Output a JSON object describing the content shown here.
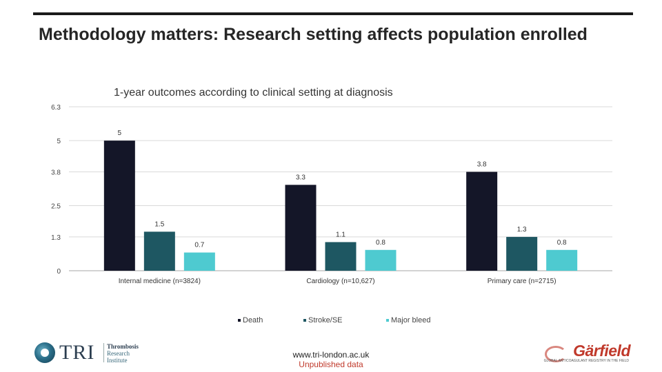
{
  "slide": {
    "title": "Methodology matters: Research setting affects population enrolled",
    "footer_url": "www.tri-london.ac.uk",
    "footer_note": "Unpublished data"
  },
  "logos": {
    "left_mark": "TRI",
    "left_sub_1": "Thrombosis",
    "left_sub_2": "Research",
    "left_sub_3": "Institute",
    "right_mark": "Gärfield",
    "right_tag": "GLOBAL ANTICOAGULANT REGISTRY IN THE FIELD"
  },
  "colors": {
    "death": "#141628",
    "stroke": "#1e5762",
    "bleed": "#4ecad0",
    "grid": "#d9d9d9",
    "axis": "#a6a6a6",
    "accent_red": "#c0392b"
  },
  "chart_data": {
    "type": "bar",
    "title": "1-year outcomes according to clinical setting at diagnosis",
    "categories": [
      "Internal medicine (n=3824)",
      "Cardiology (n=10,627)",
      "Primary care (n=2715)"
    ],
    "series": [
      {
        "name": "Death",
        "values": [
          5.0,
          3.3,
          3.8
        ],
        "labels": [
          "5",
          "3.3",
          "3.8"
        ]
      },
      {
        "name": "Stroke/SE",
        "values": [
          1.5,
          1.1,
          1.3
        ],
        "labels": [
          "1.5",
          "1.1",
          "1.3"
        ]
      },
      {
        "name": "Major bleed",
        "values": [
          0.7,
          0.8,
          0.8
        ],
        "labels": [
          "0.7",
          "0.8",
          "0.8"
        ]
      }
    ],
    "yticks": [
      0,
      1.3,
      2.5,
      3.8,
      5,
      6.3
    ],
    "ytick_labels": [
      "0",
      "1.3",
      "2.5",
      "3.8",
      "5",
      "6.3"
    ],
    "ylim": [
      0,
      6.3
    ],
    "grid": true,
    "legend_position": "bottom"
  }
}
